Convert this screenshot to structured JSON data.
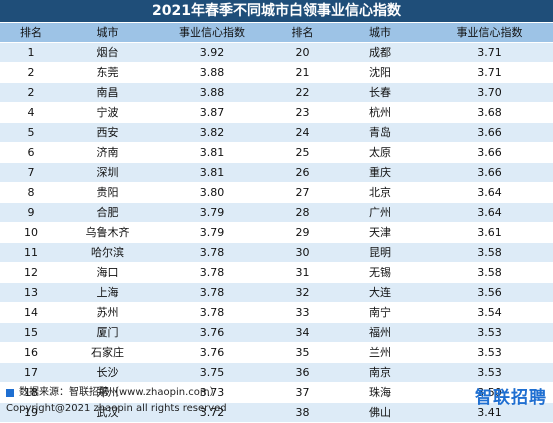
{
  "title": "2021年春季不同城市白领事业信心指数",
  "headers": [
    "排名",
    "城市",
    "事业信心指数",
    "排名",
    "城市",
    "事业信心指数"
  ],
  "rows": [
    {
      "r1": "1",
      "c1": "烟台",
      "v1": "3.92",
      "r2": "20",
      "c2": "成都",
      "v2": "3.71"
    },
    {
      "r1": "2",
      "c1": "东莞",
      "v1": "3.88",
      "r2": "21",
      "c2": "沈阳",
      "v2": "3.71"
    },
    {
      "r1": "2",
      "c1": "南昌",
      "v1": "3.88",
      "r2": "22",
      "c2": "长春",
      "v2": "3.70"
    },
    {
      "r1": "4",
      "c1": "宁波",
      "v1": "3.87",
      "r2": "23",
      "c2": "杭州",
      "v2": "3.68"
    },
    {
      "r1": "5",
      "c1": "西安",
      "v1": "3.82",
      "r2": "24",
      "c2": "青岛",
      "v2": "3.66"
    },
    {
      "r1": "6",
      "c1": "济南",
      "v1": "3.81",
      "r2": "25",
      "c2": "太原",
      "v2": "3.66"
    },
    {
      "r1": "7",
      "c1": "深圳",
      "v1": "3.81",
      "r2": "26",
      "c2": "重庆",
      "v2": "3.66"
    },
    {
      "r1": "8",
      "c1": "贵阳",
      "v1": "3.80",
      "r2": "27",
      "c2": "北京",
      "v2": "3.64"
    },
    {
      "r1": "9",
      "c1": "合肥",
      "v1": "3.79",
      "r2": "28",
      "c2": "广州",
      "v2": "3.64"
    },
    {
      "r1": "10",
      "c1": "乌鲁木齐",
      "v1": "3.79",
      "r2": "29",
      "c2": "天津",
      "v2": "3.61"
    },
    {
      "r1": "11",
      "c1": "哈尔滨",
      "v1": "3.78",
      "r2": "30",
      "c2": "昆明",
      "v2": "3.58"
    },
    {
      "r1": "12",
      "c1": "海口",
      "v1": "3.78",
      "r2": "31",
      "c2": "无锡",
      "v2": "3.58"
    },
    {
      "r1": "13",
      "c1": "上海",
      "v1": "3.78",
      "r2": "32",
      "c2": "大连",
      "v2": "3.56"
    },
    {
      "r1": "14",
      "c1": "苏州",
      "v1": "3.78",
      "r2": "33",
      "c2": "南宁",
      "v2": "3.54"
    },
    {
      "r1": "15",
      "c1": "厦门",
      "v1": "3.76",
      "r2": "34",
      "c2": "福州",
      "v2": "3.53"
    },
    {
      "r1": "16",
      "c1": "石家庄",
      "v1": "3.76",
      "r2": "35",
      "c2": "兰州",
      "v2": "3.53"
    },
    {
      "r1": "17",
      "c1": "长沙",
      "v1": "3.75",
      "r2": "36",
      "c2": "南京",
      "v2": "3.53"
    },
    {
      "r1": "18",
      "c1": "郑州",
      "v1": "3.73",
      "r2": "37",
      "c2": "珠海",
      "v2": "3.50"
    },
    {
      "r1": "19",
      "c1": "武汉",
      "v1": "3.72",
      "r2": "38",
      "c2": "佛山",
      "v2": "3.41"
    }
  ],
  "footer": {
    "source": "数据来源：智联招聘（www.zhaopin.com）",
    "copyright": "Copyright@2021 zhaopin all rights reserved",
    "logo": "智联招聘"
  },
  "colors": {
    "title_bg": "#1f4e79",
    "header_bg": "#9dc3e6",
    "stripe": "#ddebf7",
    "brand": "#1f6fd1"
  }
}
